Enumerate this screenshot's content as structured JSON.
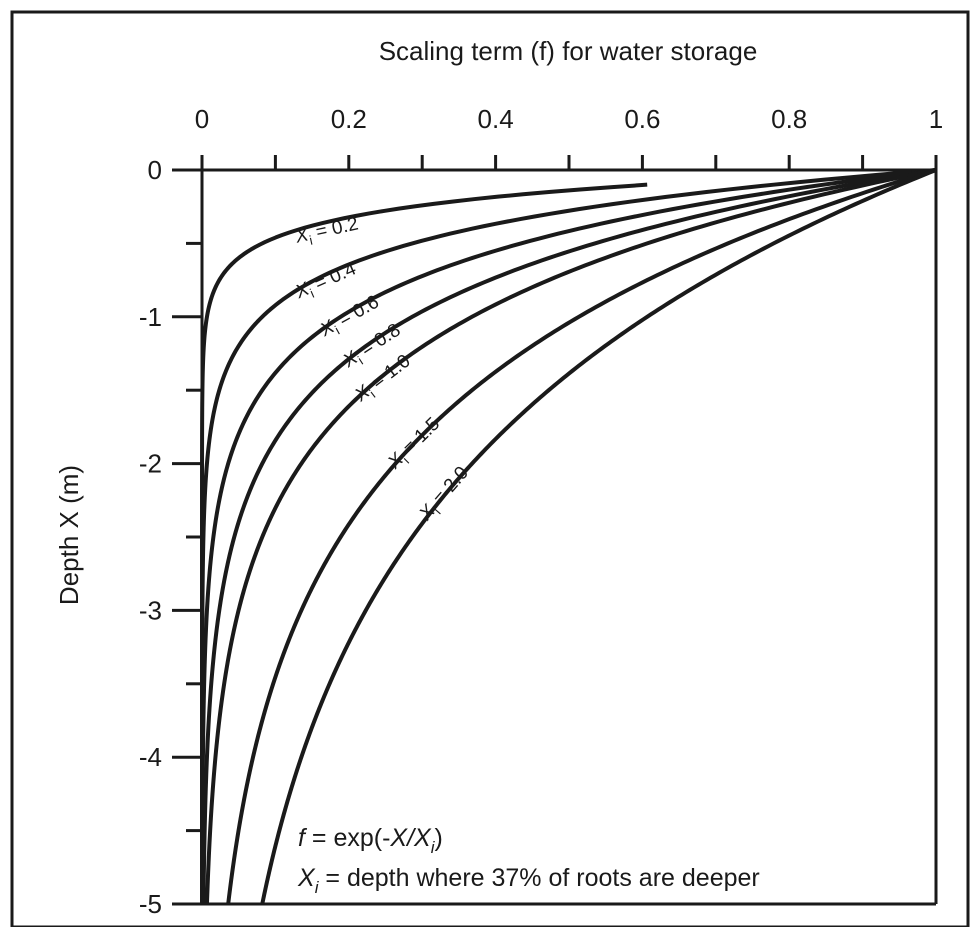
{
  "chart_data": {
    "type": "line",
    "title": "Scaling term (f) for water storage",
    "xlabel": "Scaling term (f) for water storage",
    "ylabel": "Depth X (m)",
    "xlim": [
      0,
      1
    ],
    "ylim": [
      -5,
      0
    ],
    "x_ticks": [
      "0",
      "0.2",
      "0.4",
      "0.6",
      "0.8",
      "1"
    ],
    "y_ticks": [
      "0",
      "-1",
      "-2",
      "-3",
      "-4",
      "-5"
    ],
    "x_axis_position": "top",
    "grid": false,
    "series": [
      {
        "label_prefix": "X",
        "label_sub": "i",
        "label_value": "= 0.2",
        "Xi": 0.2,
        "points": [
          [
            0.61,
            -0.1
          ],
          [
            0.368,
            -0.2
          ],
          [
            0.135,
            -0.4
          ],
          [
            0.05,
            -0.6
          ],
          [
            0.018,
            -0.8
          ],
          [
            0.007,
            -1.0
          ],
          [
            0.0,
            -2.0
          ],
          [
            0.0,
            -5.0
          ]
        ]
      },
      {
        "label_prefix": "X",
        "label_sub": "i",
        "label_value": "= 0.4",
        "Xi": 0.4,
        "points": [
          [
            1.0,
            0
          ],
          [
            0.607,
            -0.2
          ],
          [
            0.368,
            -0.4
          ],
          [
            0.223,
            -0.6
          ],
          [
            0.135,
            -0.8
          ],
          [
            0.082,
            -1.0
          ],
          [
            0.03,
            -1.4
          ],
          [
            0.007,
            -2.0
          ],
          [
            0.0,
            -3.0
          ],
          [
            0.0,
            -5.0
          ]
        ]
      },
      {
        "label_prefix": "X",
        "label_sub": "i",
        "label_value": "= 0.6",
        "Xi": 0.6,
        "points": [
          [
            1.0,
            0
          ],
          [
            0.717,
            -0.2
          ],
          [
            0.513,
            -0.4
          ],
          [
            0.368,
            -0.6
          ],
          [
            0.264,
            -0.8
          ],
          [
            0.189,
            -1.0
          ],
          [
            0.097,
            -1.4
          ],
          [
            0.036,
            -2.0
          ],
          [
            0.007,
            -3.0
          ],
          [
            0.001,
            -4.0
          ],
          [
            0.0,
            -5.0
          ]
        ]
      },
      {
        "label_prefix": "X",
        "label_sub": "i",
        "label_value": "= 0.8",
        "Xi": 0.8,
        "points": [
          [
            1.0,
            0
          ],
          [
            0.779,
            -0.2
          ],
          [
            0.607,
            -0.4
          ],
          [
            0.472,
            -0.6
          ],
          [
            0.368,
            -0.8
          ],
          [
            0.287,
            -1.0
          ],
          [
            0.174,
            -1.4
          ],
          [
            0.082,
            -2.0
          ],
          [
            0.024,
            -3.0
          ],
          [
            0.007,
            -4.0
          ],
          [
            0.002,
            -5.0
          ]
        ]
      },
      {
        "label_prefix": "X",
        "label_sub": "i",
        "label_value": "= 1.0",
        "Xi": 1.0,
        "points": [
          [
            1.0,
            0
          ],
          [
            0.819,
            -0.2
          ],
          [
            0.67,
            -0.4
          ],
          [
            0.549,
            -0.6
          ],
          [
            0.449,
            -0.8
          ],
          [
            0.368,
            -1.0
          ],
          [
            0.247,
            -1.4
          ],
          [
            0.135,
            -2.0
          ],
          [
            0.05,
            -3.0
          ],
          [
            0.018,
            -4.0
          ],
          [
            0.007,
            -5.0
          ]
        ]
      },
      {
        "label_prefix": "X",
        "label_sub": "i",
        "label_value": "= 1.5",
        "Xi": 1.5,
        "points": [
          [
            1.0,
            0
          ],
          [
            0.875,
            -0.2
          ],
          [
            0.766,
            -0.4
          ],
          [
            0.67,
            -0.6
          ],
          [
            0.587,
            -0.8
          ],
          [
            0.513,
            -1.0
          ],
          [
            0.393,
            -1.4
          ],
          [
            0.264,
            -2.0
          ],
          [
            0.135,
            -3.0
          ],
          [
            0.069,
            -4.0
          ],
          [
            0.036,
            -5.0
          ]
        ]
      },
      {
        "label_prefix": "X",
        "label_sub": "i",
        "label_value": "= 2.0",
        "Xi": 2.0,
        "points": [
          [
            1.0,
            0
          ],
          [
            0.905,
            -0.2
          ],
          [
            0.819,
            -0.4
          ],
          [
            0.741,
            -0.6
          ],
          [
            0.67,
            -0.8
          ],
          [
            0.607,
            -1.0
          ],
          [
            0.497,
            -1.4
          ],
          [
            0.368,
            -2.0
          ],
          [
            0.223,
            -3.0
          ],
          [
            0.135,
            -4.0
          ],
          [
            0.082,
            -5.0
          ]
        ]
      }
    ],
    "annotations": {
      "formula": {
        "lhs": "f",
        "mid": " = exp(-",
        "var": "X/X",
        "sub": "i",
        "end": ")"
      },
      "definition": {
        "var": "X",
        "sub": "i",
        "text": " = depth where 37% of roots are deeper"
      }
    }
  }
}
